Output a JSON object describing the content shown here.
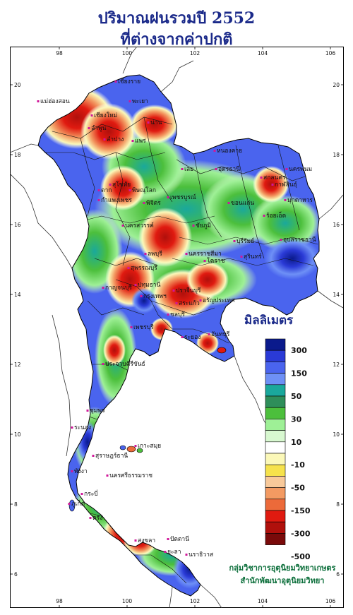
{
  "title": {
    "line1": "ปริมาณฝนรวมปี  2552",
    "line2": "ที่ต่างจากค่าปกติ"
  },
  "axes": {
    "top_lon": [
      "98",
      "100",
      "102",
      "104",
      "106"
    ],
    "bottom_lon": [
      "98",
      "100",
      "102",
      "104",
      "106"
    ],
    "left_lat": [
      "20",
      "18",
      "16",
      "14",
      "12",
      "10",
      "8",
      "6"
    ],
    "right_lat": [
      "20",
      "18",
      "16",
      "14",
      "12",
      "10",
      "8",
      "6"
    ]
  },
  "legend": {
    "title": "มิลลิเมตร",
    "colors": [
      "#0a1a8c",
      "#2a3ad6",
      "#4a64ee",
      "#6e90f6",
      "#1aa89c",
      "#2e8e5a",
      "#4cbf3c",
      "#9ef096",
      "#d8f8d0",
      "#ffffff",
      "#fbf8b8",
      "#f6e24c",
      "#f8c99a",
      "#f39a62",
      "#ec6a3a",
      "#e01a10",
      "#b0100c",
      "#7a0a0a"
    ],
    "labels": [
      "300",
      "150",
      "50",
      "30",
      "10",
      "-10",
      "-50",
      "-150",
      "-300",
      "-500"
    ]
  },
  "places": [
    {
      "name": "เชียงราย"
    },
    {
      "name": "แม่ฮ่องสอน"
    },
    {
      "name": "พะเยา"
    },
    {
      "name": "เชียงใหม่"
    },
    {
      "name": "ลำพูน"
    },
    {
      "name": "น่าน"
    },
    {
      "name": "ลำปาง"
    },
    {
      "name": "แพร่"
    },
    {
      "name": "หนองคาย"
    },
    {
      "name": "อุดรธานี"
    },
    {
      "name": "เลย"
    },
    {
      "name": "สกลนคร"
    },
    {
      "name": "นครพนม"
    },
    {
      "name": "มุกดาหาร"
    },
    {
      "name": "กาฬสินธุ์"
    },
    {
      "name": "ขอนแก่น"
    },
    {
      "name": "ร้อยเอ็ด"
    },
    {
      "name": "อุบลราชธานี"
    },
    {
      "name": "พิษณุโลก"
    },
    {
      "name": "สุโขทัย"
    },
    {
      "name": "ตาก"
    },
    {
      "name": "กำแพงเพชร"
    },
    {
      "name": "พิจิตร"
    },
    {
      "name": "เพชรบูรณ์"
    },
    {
      "name": "นครสวรรค์"
    },
    {
      "name": "ชัยภูมิ"
    },
    {
      "name": "ลพบุรี"
    },
    {
      "name": "สุพรรณบุรี"
    },
    {
      "name": "นครราชสีมา"
    },
    {
      "name": "บุรีรัมย์"
    },
    {
      "name": "สุรินทร์"
    },
    {
      "name": "โคราช"
    },
    {
      "name": "กาญจนบุรี"
    },
    {
      "name": "ปทุมธานี"
    },
    {
      "name": "กรุงเทพฯ"
    },
    {
      "name": "ปราจีนบุรี"
    },
    {
      "name": "สระแก้ว"
    },
    {
      "name": "อรัญประเทศ"
    },
    {
      "name": "ชลบุรี"
    },
    {
      "name": "ระยอง"
    },
    {
      "name": "จันทบุรี"
    },
    {
      "name": "เพชรบุรี"
    },
    {
      "name": "ประจวบคีรีขันธ์"
    },
    {
      "name": "ชุมพร"
    },
    {
      "name": "ระนอง"
    },
    {
      "name": "เกาะสมุย"
    },
    {
      "name": "สุราษฎร์ธานี"
    },
    {
      "name": "พังงา"
    },
    {
      "name": "ภูเก็ต"
    },
    {
      "name": "กระบี่"
    },
    {
      "name": "นครศรีธรรมราช"
    },
    {
      "name": "ตรัง"
    },
    {
      "name": "สงขลา"
    },
    {
      "name": "ปัตตานี"
    },
    {
      "name": "นราธิวาส"
    },
    {
      "name": "ยะลา"
    }
  ],
  "credit": {
    "line1": "กลุ่มวิชาการอุตุนิยมวิทยาเกษตร",
    "line2": "สำนักพัฒนาอุตุนิยมวิทยา"
  }
}
